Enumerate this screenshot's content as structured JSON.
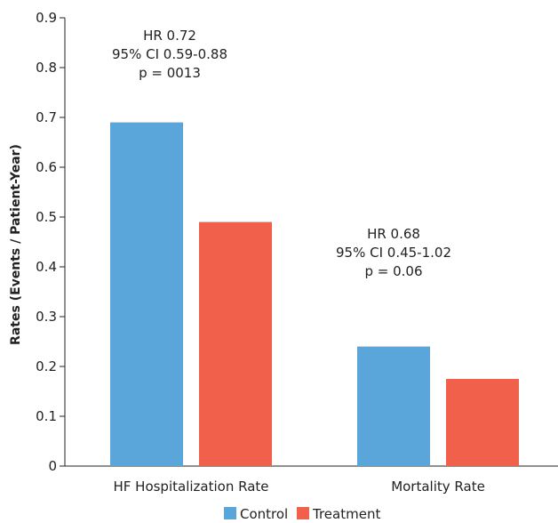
{
  "chart_data": {
    "type": "bar",
    "categories": [
      "HF Hospitalization Rate",
      "Mortality Rate"
    ],
    "series": [
      {
        "name": "Control",
        "values": [
          0.69,
          0.24
        ],
        "color": "#5aa5da"
      },
      {
        "name": "Treatment",
        "values": [
          0.49,
          0.175
        ],
        "color": "#f0604a"
      }
    ],
    "ylabel": "Rates (Events / Patient-Year)",
    "ylim": [
      0,
      0.9
    ],
    "yticks": [
      "0",
      "0.1",
      "0.2",
      "0.3",
      "0.4",
      "0.5",
      "0.6",
      "0.7",
      "0.8",
      "0.9"
    ],
    "grid": false,
    "legend_position": "bottom-center",
    "annotations": [
      {
        "lines": [
          "HR 0.72",
          "95% CI 0.59-0.88",
          "p = 0013"
        ]
      },
      {
        "lines": [
          "HR 0.68",
          "95% CI 0.45-1.02",
          "p = 0.06"
        ]
      }
    ]
  }
}
